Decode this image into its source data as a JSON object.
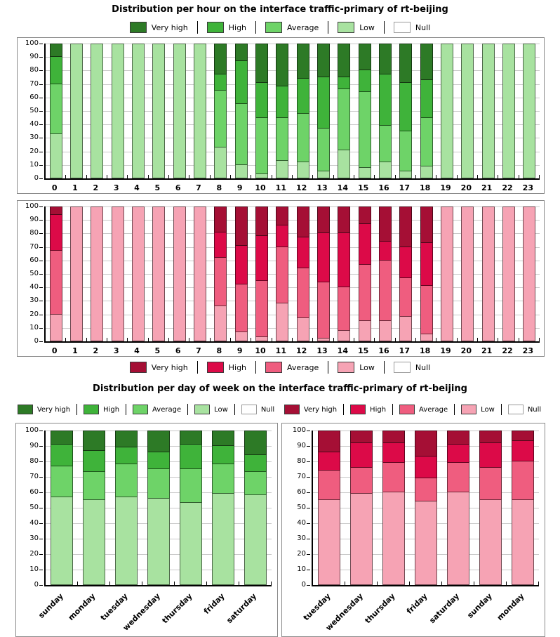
{
  "titles": {
    "hourly": "Distribution per hour on the interface traffic-primary of rt-beijing",
    "weekly": "Distribution per day of week on the interface traffic-primary of rt-beijing"
  },
  "legend": {
    "labels": [
      "Very high",
      "High",
      "Average",
      "Low",
      "Null"
    ]
  },
  "palettes": {
    "green": {
      "very_high": "#2d7a26",
      "high": "#3fb33a",
      "average": "#6ed368",
      "low": "#a8e2a0",
      "null": "#ffffff"
    },
    "red": {
      "very_high": "#a50f35",
      "high": "#dc0a48",
      "average": "#ef5d7f",
      "low": "#f6a3b4",
      "null": "#ffffff"
    }
  },
  "axis": {
    "ylim": [
      0,
      100
    ],
    "yticks": [
      0,
      10,
      20,
      30,
      40,
      50,
      60,
      70,
      80,
      90,
      100
    ],
    "grid": true
  },
  "chart_data": [
    {
      "id": "hourly-green",
      "type": "bar",
      "stacked": true,
      "palette": "green",
      "title": "Distribution per hour on the interface traffic-primary of rt-beijing",
      "ylim": [
        0,
        100
      ],
      "categories": [
        "0",
        "1",
        "2",
        "3",
        "4",
        "5",
        "6",
        "7",
        "8",
        "9",
        "10",
        "11",
        "12",
        "13",
        "14",
        "15",
        "16",
        "17",
        "18",
        "19",
        "20",
        "21",
        "22",
        "23"
      ],
      "series": [
        {
          "name": "Very high",
          "values": [
            10,
            0,
            0,
            0,
            0,
            0,
            0,
            0,
            23,
            13,
            29,
            32,
            26,
            25,
            25,
            20,
            23,
            29,
            27,
            0,
            0,
            0,
            0,
            0
          ]
        },
        {
          "name": "High",
          "values": [
            20,
            0,
            0,
            0,
            0,
            0,
            0,
            0,
            12,
            32,
            26,
            23,
            26,
            38,
            9,
            16,
            38,
            36,
            28,
            0,
            0,
            0,
            0,
            0
          ]
        },
        {
          "name": "Average",
          "values": [
            37,
            0,
            0,
            0,
            0,
            0,
            0,
            0,
            42,
            45,
            42,
            32,
            36,
            32,
            45,
            56,
            27,
            30,
            36,
            0,
            0,
            0,
            0,
            0
          ]
        },
        {
          "name": "Low",
          "values": [
            33,
            100,
            100,
            100,
            100,
            100,
            100,
            100,
            23,
            10,
            3,
            13,
            12,
            5,
            21,
            8,
            12,
            5,
            9,
            100,
            100,
            100,
            100,
            100
          ]
        },
        {
          "name": "Null",
          "values": [
            0,
            0,
            0,
            0,
            0,
            0,
            0,
            0,
            0,
            0,
            0,
            0,
            0,
            0,
            0,
            0,
            0,
            0,
            0,
            0,
            0,
            0,
            0,
            0
          ]
        }
      ]
    },
    {
      "id": "hourly-red",
      "type": "bar",
      "stacked": true,
      "palette": "red",
      "title": "Distribution per hour on the interface traffic-primary of rt-beijing",
      "ylim": [
        0,
        100
      ],
      "categories": [
        "0",
        "1",
        "2",
        "3",
        "4",
        "5",
        "6",
        "7",
        "8",
        "9",
        "10",
        "11",
        "12",
        "13",
        "14",
        "15",
        "16",
        "17",
        "18",
        "19",
        "20",
        "21",
        "22",
        "23"
      ],
      "series": [
        {
          "name": "Very high",
          "values": [
            6,
            0,
            0,
            0,
            0,
            0,
            0,
            0,
            19,
            29,
            22,
            14,
            23,
            20,
            20,
            13,
            26,
            30,
            27,
            0,
            0,
            0,
            0,
            0
          ]
        },
        {
          "name": "High",
          "values": [
            27,
            0,
            0,
            0,
            0,
            0,
            0,
            0,
            19,
            29,
            33,
            16,
            23,
            36,
            40,
            30,
            14,
            23,
            32,
            0,
            0,
            0,
            0,
            0
          ]
        },
        {
          "name": "Average",
          "values": [
            47,
            0,
            0,
            0,
            0,
            0,
            0,
            0,
            36,
            35,
            42,
            42,
            37,
            42,
            32,
            42,
            45,
            29,
            36,
            0,
            0,
            0,
            0,
            0
          ]
        },
        {
          "name": "Low",
          "values": [
            20,
            100,
            100,
            100,
            100,
            100,
            100,
            100,
            26,
            7,
            3,
            28,
            17,
            2,
            8,
            15,
            15,
            18,
            5,
            100,
            100,
            100,
            100,
            100
          ]
        },
        {
          "name": "Null",
          "values": [
            0,
            0,
            0,
            0,
            0,
            0,
            0,
            0,
            0,
            0,
            0,
            0,
            0,
            0,
            0,
            0,
            0,
            0,
            0,
            0,
            0,
            0,
            0,
            0
          ]
        }
      ]
    },
    {
      "id": "weekly-green",
      "type": "bar",
      "stacked": true,
      "palette": "green",
      "title": "Distribution per day of week on the interface traffic-primary of rt-beijing",
      "ylim": [
        0,
        100
      ],
      "categories": [
        "sunday",
        "monday",
        "tuesday",
        "wednesday",
        "thursday",
        "friday",
        "saturday"
      ],
      "series": [
        {
          "name": "Very high",
          "values": [
            9,
            13,
            11,
            14,
            9,
            10,
            16
          ]
        },
        {
          "name": "High",
          "values": [
            14,
            14,
            11,
            11,
            16,
            12,
            11
          ]
        },
        {
          "name": "Average",
          "values": [
            20,
            18,
            21,
            19,
            22,
            19,
            15
          ]
        },
        {
          "name": "Low",
          "values": [
            57,
            55,
            57,
            56,
            53,
            59,
            58
          ]
        },
        {
          "name": "Null",
          "values": [
            0,
            0,
            0,
            0,
            0,
            0,
            0
          ]
        }
      ]
    },
    {
      "id": "weekly-red",
      "type": "bar",
      "stacked": true,
      "palette": "red",
      "title": "Distribution per day of week on the interface traffic-primary of rt-beijing",
      "ylim": [
        0,
        100
      ],
      "categories": [
        "tuesday",
        "wednesday",
        "thursday",
        "friday",
        "saturday",
        "sunday",
        "monday"
      ],
      "series": [
        {
          "name": "Very high",
          "values": [
            14,
            8,
            8,
            17,
            9,
            8,
            7
          ]
        },
        {
          "name": "High",
          "values": [
            12,
            16,
            13,
            14,
            12,
            16,
            13
          ]
        },
        {
          "name": "Average",
          "values": [
            19,
            17,
            19,
            15,
            19,
            21,
            25
          ]
        },
        {
          "name": "Low",
          "values": [
            55,
            59,
            60,
            54,
            60,
            55,
            55
          ]
        },
        {
          "name": "Null",
          "values": [
            0,
            0,
            0,
            0,
            0,
            0,
            0
          ]
        }
      ]
    }
  ]
}
